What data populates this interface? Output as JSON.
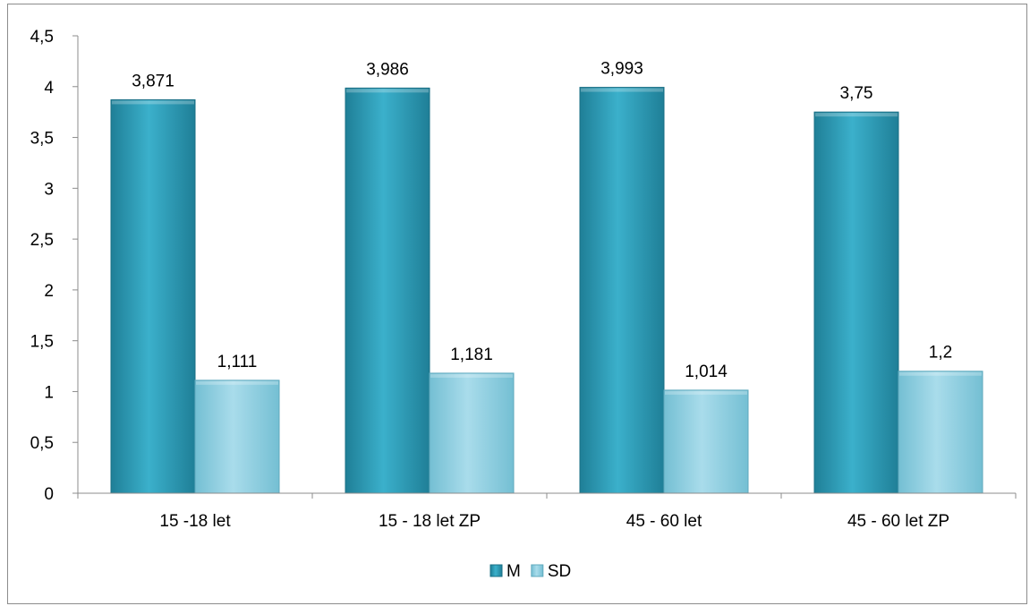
{
  "chart_data": {
    "type": "bar",
    "title": "",
    "xlabel": "",
    "ylabel": "",
    "categories": [
      "15 -18 let",
      "15 - 18 let ZP",
      "45 - 60 let",
      "45 - 60 let ZP"
    ],
    "series": [
      {
        "name": "M",
        "values": [
          3.871,
          3.986,
          3.993,
          3.75
        ],
        "labels": [
          "3,871",
          "3,986",
          "3,993",
          "3,75"
        ],
        "color": "#2c9db8"
      },
      {
        "name": "SD",
        "values": [
          1.111,
          1.181,
          1.014,
          1.2
        ],
        "labels": [
          "1,111",
          "1,181",
          "1,014",
          "1,2"
        ],
        "color": "#8fd0e3"
      }
    ],
    "ylim": [
      0,
      4.5
    ],
    "yticks": [
      0,
      0.5,
      1,
      1.5,
      2,
      2.5,
      3,
      3.5,
      4,
      4.5
    ],
    "ytick_labels": [
      "0",
      "0,5",
      "1",
      "1,5",
      "2",
      "2,5",
      "3",
      "3,5",
      "4",
      "4,5"
    ],
    "grid": false,
    "legend_position": "bottom"
  }
}
